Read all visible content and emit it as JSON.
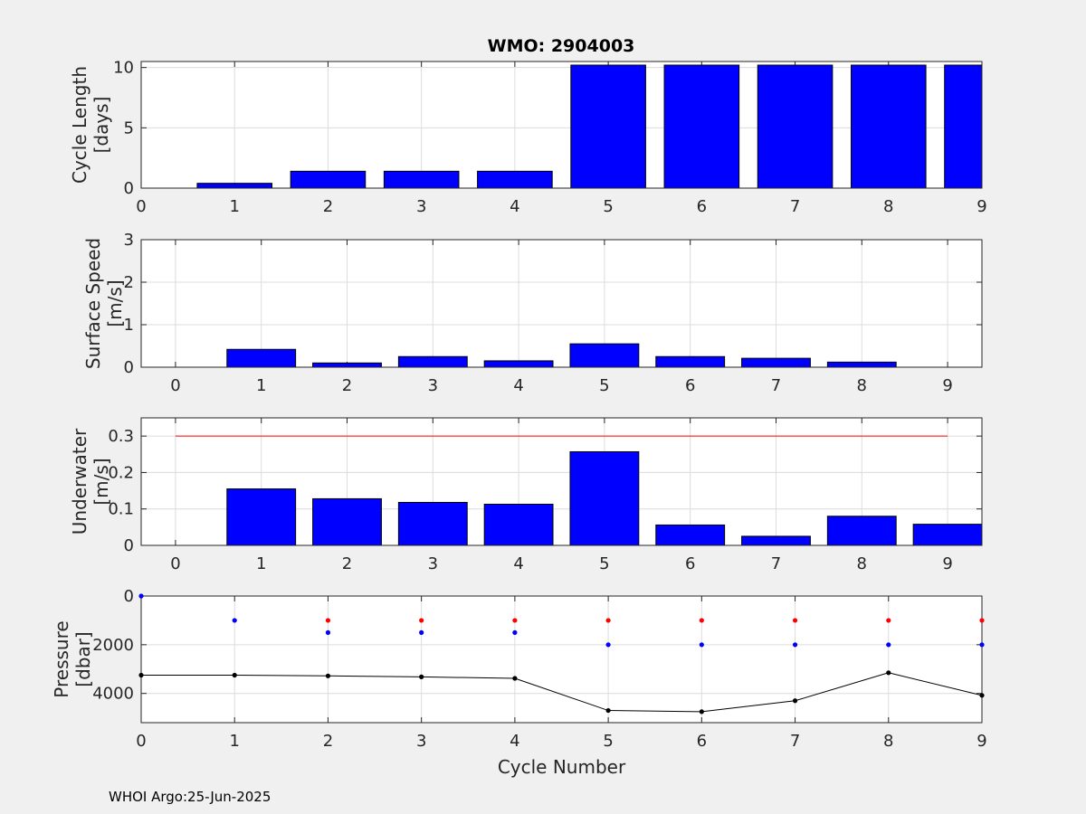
{
  "figure": {
    "title": "WMO: 2904003",
    "footer": "WHOI Argo:25-Jun-2025",
    "colors": {
      "background": "#f0f0f0",
      "bar_fill": "#0000ff",
      "grid": "#dcdcdc",
      "limit_line": "#ff0000"
    }
  },
  "chart_data": [
    {
      "type": "bar",
      "ylabel": [
        "Cycle Length",
        "[days]"
      ],
      "xlim": [
        0,
        9
      ],
      "ylim": [
        0,
        10.5
      ],
      "xticks": [
        "0",
        "1",
        "2",
        "3",
        "4",
        "5",
        "6",
        "7",
        "8",
        "9"
      ],
      "yticks": [
        "0",
        "5",
        "10"
      ],
      "grid": true,
      "x": [
        1,
        2,
        3,
        4,
        5,
        6,
        7,
        8,
        9
      ],
      "values": [
        0.4,
        1.4,
        1.4,
        1.4,
        10.2,
        10.2,
        10.2,
        10.2,
        10.2
      ]
    },
    {
      "type": "bar",
      "ylabel": [
        "Surface Speed",
        "[m/s]"
      ],
      "xlim": [
        -0.4,
        9.4
      ],
      "ylim": [
        0,
        3
      ],
      "xticks": [
        "0",
        "1",
        "2",
        "3",
        "4",
        "5",
        "6",
        "7",
        "8",
        "9"
      ],
      "yticks": [
        "0",
        "1",
        "2",
        "3"
      ],
      "grid": true,
      "x": [
        1,
        2,
        3,
        4,
        5,
        6,
        7,
        8
      ],
      "values": [
        0.42,
        0.1,
        0.25,
        0.15,
        0.55,
        0.25,
        0.21,
        0.12
      ]
    },
    {
      "type": "bar",
      "ylabel": [
        "Underwater",
        "[m/s]"
      ],
      "xlim": [
        -0.4,
        9.4
      ],
      "ylim": [
        0,
        0.35
      ],
      "xticks": [
        "0",
        "1",
        "2",
        "3",
        "4",
        "5",
        "6",
        "7",
        "8",
        "9"
      ],
      "yticks": [
        "0",
        "0.1",
        "0.2",
        "0.3"
      ],
      "grid": true,
      "x": [
        1,
        2,
        3,
        4,
        5,
        6,
        7,
        8,
        9
      ],
      "values": [
        0.155,
        0.128,
        0.118,
        0.113,
        0.257,
        0.056,
        0.025,
        0.08,
        0.058
      ],
      "reference_line": {
        "y": 0.3,
        "x_range": [
          0,
          9
        ]
      }
    },
    {
      "type": "scatter",
      "ylabel": [
        "Pressure",
        "[dbar]"
      ],
      "xlabel": "Cycle Number",
      "xlim": [
        0,
        9
      ],
      "ylim": [
        5200,
        0
      ],
      "y_reversed": true,
      "xticks": [
        "0",
        "1",
        "2",
        "3",
        "4",
        "5",
        "6",
        "7",
        "8",
        "9"
      ],
      "yticks": [
        "0",
        "2000",
        "4000"
      ],
      "grid": true,
      "series": [
        {
          "color": "#ff0000",
          "marker": "dot",
          "x": [
            2,
            3,
            4,
            5,
            6,
            7,
            8,
            9
          ],
          "values": [
            1000,
            1000,
            1000,
            1000,
            1000,
            1000,
            1000,
            1000
          ]
        },
        {
          "color": "#0000ff",
          "marker": "dot",
          "x": [
            0,
            1,
            2,
            3,
            4,
            5,
            6,
            7,
            8,
            9
          ],
          "values": [
            0,
            1000,
            1500,
            1500,
            1500,
            2000,
            2000,
            2000,
            2000,
            2000
          ]
        },
        {
          "color": "#000000",
          "marker": "dot-line",
          "x": [
            0,
            1,
            2,
            3,
            4,
            5,
            6,
            7,
            8,
            9
          ],
          "values": [
            3250,
            3250,
            3280,
            3320,
            3380,
            4700,
            4750,
            4300,
            3150,
            4080
          ]
        }
      ]
    }
  ]
}
